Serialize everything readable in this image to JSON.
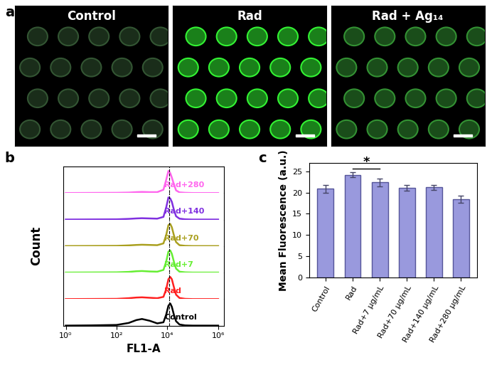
{
  "chart_data": [
    {
      "type": "image",
      "label": "a",
      "images": [
        "Control",
        "Rad",
        "Rad + Ag₁₄"
      ]
    },
    {
      "type": "line",
      "label": "b",
      "x_label": "FL1-A",
      "y_label": "Count",
      "log": "x",
      "x": [
        1,
        10,
        100,
        300,
        600,
        1000,
        2000,
        4000,
        7000,
        9000,
        11000,
        13000,
        15000,
        18000,
        22000,
        30000,
        50000,
        100000,
        1000000
      ],
      "xlim": [
        0.8,
        1700000
      ],
      "xticks": [
        {
          "value": 1,
          "label": "10⁰"
        },
        {
          "value": 100,
          "label": "10²"
        },
        {
          "value": 10000,
          "label": "10⁴"
        },
        {
          "value": 1000000,
          "label": "10⁶"
        }
      ],
      "ylim": [
        0,
        1.2
      ],
      "yticks": [],
      "tick_labels": "x",
      "vline": 12000,
      "series": [
        {
          "name": "Control",
          "color": "#000000",
          "values": [
            0,
            0.01,
            0.03,
            0.12,
            0.25,
            0.3,
            0.22,
            0.1,
            0.15,
            0.5,
            0.9,
            1.0,
            0.85,
            0.5,
            0.2,
            0.05,
            0.01,
            0,
            0
          ]
        },
        {
          "name": "Rad",
          "color": "#ff2020",
          "values": [
            0,
            0.005,
            0.01,
            0.04,
            0.07,
            0.08,
            0.06,
            0.04,
            0.1,
            0.45,
            0.9,
            1.0,
            0.9,
            0.55,
            0.2,
            0.05,
            0.01,
            0,
            0
          ]
        },
        {
          "name": "Rad+7",
          "color": "#66ee33",
          "values": [
            0,
            0.005,
            0.01,
            0.03,
            0.06,
            0.07,
            0.05,
            0.04,
            0.12,
            0.5,
            0.95,
            1.0,
            0.85,
            0.5,
            0.18,
            0.04,
            0.01,
            0,
            0
          ]
        },
        {
          "name": "Rad+70",
          "color": "#aaa020",
          "values": [
            0,
            0.005,
            0.01,
            0.03,
            0.05,
            0.06,
            0.05,
            0.04,
            0.12,
            0.5,
            0.95,
            1.0,
            0.85,
            0.5,
            0.18,
            0.04,
            0.01,
            0,
            0
          ]
        },
        {
          "name": "Rad+140",
          "color": "#8030e0",
          "values": [
            0,
            0.005,
            0.01,
            0.03,
            0.05,
            0.06,
            0.05,
            0.04,
            0.12,
            0.55,
            1.0,
            0.95,
            0.8,
            0.45,
            0.15,
            0.04,
            0.01,
            0,
            0
          ]
        },
        {
          "name": "Rad+280",
          "color": "#ff66ee",
          "values": [
            0,
            0.005,
            0.01,
            0.02,
            0.04,
            0.05,
            0.04,
            0.04,
            0.15,
            0.6,
            1.0,
            0.9,
            0.7,
            0.4,
            0.12,
            0.03,
            0.01,
            0,
            0
          ]
        }
      ]
    },
    {
      "type": "bar",
      "label": "c",
      "y_label": "Mean Fluorescence (a.u.)",
      "categories": [
        "Control",
        "Rad",
        "Rad+7 μg/mL",
        "Rad+70 μg/mL",
        "Rad+140 μg/mL",
        "Rad+280 μg/mL"
      ],
      "values": [
        20.9,
        24.2,
        22.4,
        21.1,
        21.2,
        18.4
      ],
      "errors": [
        0.9,
        0.6,
        0.9,
        0.6,
        0.6,
        0.8
      ],
      "color": "#9999dd",
      "ylim": [
        0,
        27
      ],
      "yticks": [
        0,
        5,
        10,
        15,
        20,
        25
      ],
      "annotations": [
        {
          "text": "*",
          "between": [
            "Rad",
            "Rad+7 μg/mL"
          ],
          "y": 25.6
        }
      ]
    }
  ]
}
